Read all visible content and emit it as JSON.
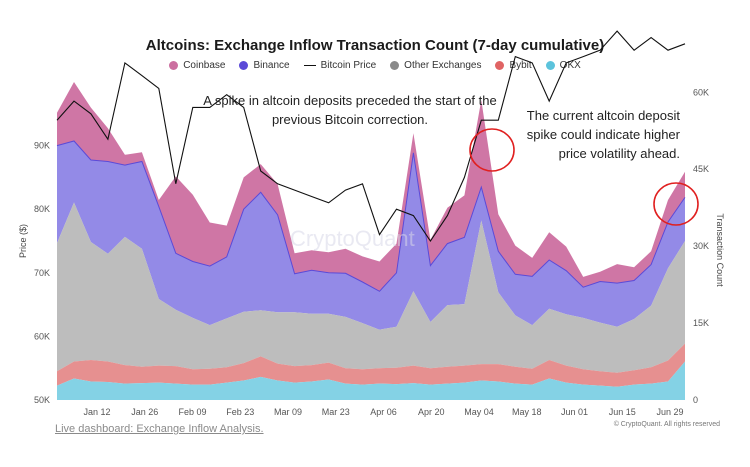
{
  "chart_data": {
    "type": "area",
    "title": "Altcoins: Exchange Inflow Transaction Count (7-day cumulative)",
    "xlabel": "",
    "ylabel_left": "Price ($)",
    "ylabel_right": "Transaction Count",
    "x_ticks": [
      "Jan 12",
      "Jan 26",
      "Feb 09",
      "Feb 23",
      "Mar 09",
      "Mar 23",
      "Apr 06",
      "Apr 20",
      "May 04",
      "May 18",
      "Jun 01",
      "Jun 15",
      "Jun 29"
    ],
    "y_left_ticks": [
      "50K",
      "60K",
      "70K",
      "80K",
      "90K"
    ],
    "y_left_range": [
      50000,
      100000
    ],
    "y_right_ticks": [
      "0",
      "15K",
      "30K",
      "45K",
      "60K"
    ],
    "y_right_range": [
      0,
      62000
    ],
    "legend_position": "top",
    "grid": false,
    "colors": {
      "Coinbase": "#cc6fa0",
      "Binance": "#8d84e6",
      "Bitcoin Price": "#111111",
      "Other Exchanges": "#b9b9b9",
      "Bybit": "#e58a8a",
      "OKX": "#7dd0e4"
    },
    "legend": [
      "Coinbase",
      "Binance",
      "Bitcoin Price",
      "Other Exchanges",
      "Bybit",
      "OKX"
    ],
    "series": [
      {
        "name": "OKX",
        "axis": "right",
        "stacked": true,
        "values": [
          2800,
          4200,
          3600,
          3500,
          3200,
          3300,
          3400,
          3200,
          3000,
          3000,
          3400,
          3800,
          4500,
          3800,
          3400,
          3600,
          4000,
          3200,
          3000,
          3200,
          3100,
          3300,
          3000,
          3200,
          3400,
          3800,
          3600,
          3200,
          3000,
          4200,
          3400,
          3000,
          2800,
          2600,
          3000,
          3200,
          3600,
          7500
        ]
      },
      {
        "name": "Bybit",
        "axis": "right",
        "stacked": true,
        "values": [
          2800,
          3300,
          4200,
          4000,
          3600,
          3200,
          3300,
          3400,
          3000,
          3100,
          3000,
          3400,
          4000,
          3300,
          3200,
          3200,
          3300,
          3000,
          3000,
          3000,
          3200,
          3400,
          3200,
          3300,
          3300,
          3200,
          3400,
          3300,
          3100,
          3600,
          3300,
          3000,
          2800,
          2700,
          2800,
          3200,
          4100,
          3500
        ]
      },
      {
        "name": "Other Exchanges",
        "axis": "right",
        "stacked": true,
        "values": [
          25000,
          31000,
          23000,
          21000,
          25000,
          23000,
          13000,
          11000,
          10000,
          8500,
          9500,
          10000,
          9000,
          10000,
          10500,
          10000,
          9500,
          10000,
          9000,
          7500,
          8000,
          14500,
          9000,
          12000,
          12000,
          28000,
          14000,
          10000,
          8500,
          10000,
          10000,
          10000,
          9500,
          9000,
          10000,
          12000,
          18000,
          20000
        ]
      },
      {
        "name": "Binance",
        "axis": "right",
        "stacked": true,
        "values": [
          19000,
          12000,
          16000,
          18000,
          14000,
          17000,
          18000,
          11000,
          11000,
          11500,
          12000,
          20000,
          23000,
          19000,
          7500,
          8500,
          8000,
          8500,
          8000,
          7500,
          10500,
          27000,
          11000,
          12000,
          13000,
          6500,
          8000,
          8000,
          9500,
          9500,
          8500,
          6000,
          8000,
          8500,
          7500,
          8000,
          9000,
          8500
        ]
      },
      {
        "name": "Coinbase",
        "axis": "right",
        "stacked": true,
        "values": [
          6400,
          11500,
          10200,
          6500,
          2000,
          1800,
          1300,
          15000,
          13000,
          8500,
          6100,
          6200,
          5500,
          6000,
          4000,
          3900,
          4000,
          4800,
          5000,
          5800,
          5700,
          3800,
          5000,
          7000,
          8200,
          17000,
          7200,
          5600,
          3600,
          5400,
          4700,
          2000,
          1900,
          3700,
          2600,
          2600,
          4300,
          5000
        ]
      },
      {
        "name": "Bitcoin Price",
        "axis": "left",
        "stacked": false,
        "values": [
          94000,
          97000,
          95000,
          91000,
          103000,
          101000,
          99000,
          84000,
          96000,
          96000,
          98000,
          96000,
          86000,
          84000,
          83000,
          82000,
          81000,
          83000,
          84000,
          76000,
          80000,
          79000,
          75000,
          79000,
          85000,
          94000,
          94000,
          104000,
          103000,
          97000,
          103000,
          104000,
          105000,
          108000,
          105000,
          107000,
          105000,
          106000
        ]
      }
    ],
    "annotations": [
      "A spike in altcoin deposits preceded the start of the previous Bitcoin correction.",
      "The current altcoin deposit spike could indicate higher price volatility ahead."
    ]
  },
  "footer": {
    "link": "Live dashboard: Exchange Inflow Analysis.",
    "copyright": "© CryptoQuant. All rights reserved"
  },
  "watermark": "CryptoQuant"
}
